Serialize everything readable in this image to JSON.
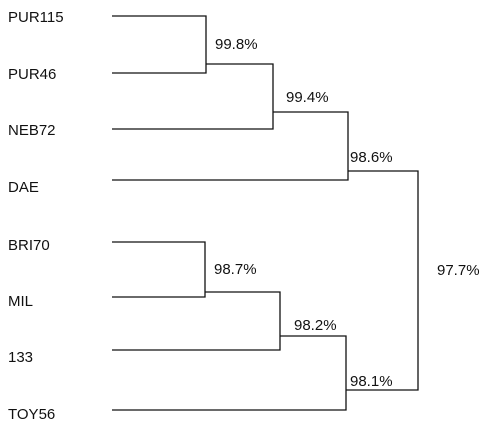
{
  "dendrogram": {
    "leaves": [
      "PUR115",
      "PUR46",
      "NEB72",
      "DAE",
      "BRI70",
      "MIL",
      "133",
      "TOY56"
    ],
    "nodes": [
      {
        "id": "n1",
        "children": [
          "PUR115",
          "PUR46"
        ],
        "label": "99.8%"
      },
      {
        "id": "n2",
        "children": [
          "n1",
          "NEB72"
        ],
        "label": "99.4%"
      },
      {
        "id": "n3",
        "children": [
          "n2",
          "DAE"
        ],
        "label": "98.6%"
      },
      {
        "id": "n4",
        "children": [
          "BRI70",
          "MIL"
        ],
        "label": "98.7%"
      },
      {
        "id": "n5",
        "children": [
          "n4",
          "133"
        ],
        "label": "98.2%"
      },
      {
        "id": "n6",
        "children": [
          "n5",
          "TOY56"
        ],
        "label": "98.1%"
      },
      {
        "id": "n7",
        "children": [
          "n3",
          "n6"
        ],
        "label": "97.7%"
      }
    ],
    "line_color": "#111111"
  }
}
